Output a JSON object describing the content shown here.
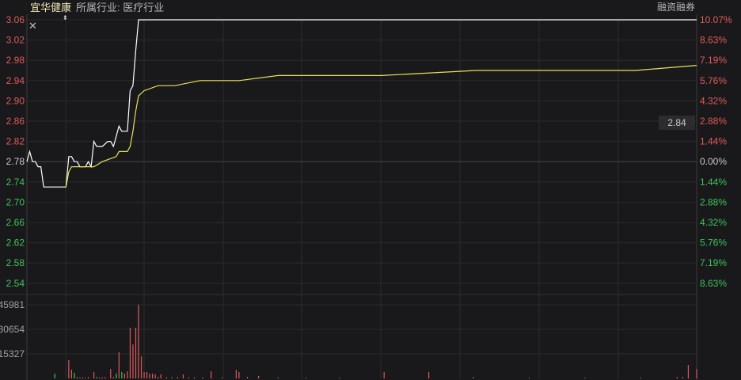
{
  "header": {
    "stock_name": "宜华健康",
    "industry": "所属行业: 医疗行业",
    "margin_trading": "融资融券",
    "current_price_label": "2.84"
  },
  "icons": {
    "close": "close-icon",
    "marker": "drag-handle-icon"
  },
  "colors": {
    "background": "#19191b",
    "grid": "#2b2b2d",
    "up": "#e05a5a",
    "down": "#3cc35a",
    "neutral": "#c8c8c8",
    "price_line": "#ffffff",
    "avg_line": "#e8e05a"
  },
  "chart_data": {
    "type": "line",
    "x_unit": "minute",
    "xlim": [
      0,
      240
    ],
    "prev_close": 2.78,
    "ylim": [
      2.52,
      3.06
    ],
    "y_ticks": [
      "3.06",
      "3.02",
      "2.98",
      "2.94",
      "2.90",
      "2.86",
      "2.82",
      "2.78",
      "2.74",
      "2.70",
      "2.66",
      "2.62",
      "2.58",
      "2.54"
    ],
    "pct_ticks": [
      "10.07%",
      "8.63%",
      "7.19%",
      "5.76%",
      "4.32%",
      "2.88%",
      "1.44%",
      "0.00%",
      "1.44%",
      "2.88%",
      "4.32%",
      "5.76%",
      "7.19%",
      "8.63%"
    ],
    "grid": true,
    "series": [
      {
        "key": "price",
        "x": [
          0,
          1,
          2,
          3,
          4,
          5,
          6,
          14,
          15,
          16,
          17,
          18,
          19,
          21,
          22,
          23,
          24,
          25,
          27,
          29,
          30,
          31,
          33,
          34,
          36,
          37,
          38,
          39,
          40,
          240
        ],
        "y": [
          2.78,
          2.8,
          2.78,
          2.78,
          2.77,
          2.77,
          2.73,
          2.73,
          2.79,
          2.79,
          2.78,
          2.78,
          2.77,
          2.77,
          2.78,
          2.77,
          2.82,
          2.81,
          2.81,
          2.82,
          2.82,
          2.81,
          2.85,
          2.84,
          2.84,
          2.92,
          2.93,
          3.0,
          3.06,
          3.06
        ]
      },
      {
        "key": "average",
        "x": [
          14,
          15,
          16,
          19,
          24,
          27,
          32,
          33,
          36,
          37,
          38,
          39,
          40,
          42,
          47,
          53,
          62,
          76,
          90,
          127,
          161,
          218,
          240
        ],
        "y": [
          2.73,
          2.76,
          2.77,
          2.77,
          2.77,
          2.78,
          2.79,
          2.8,
          2.8,
          2.81,
          2.84,
          2.88,
          2.91,
          2.92,
          2.93,
          2.93,
          2.94,
          2.94,
          2.95,
          2.95,
          2.96,
          2.96,
          2.97
        ]
      }
    ],
    "volume": {
      "ticks": [
        "45981",
        "30654",
        "15327"
      ],
      "ylim": [
        0,
        45981
      ],
      "bars": [
        {
          "x": 10,
          "v": 3000,
          "dir": "down"
        },
        {
          "x": 15,
          "v": 11400,
          "dir": "up"
        },
        {
          "x": 16,
          "v": 5400,
          "dir": "up"
        },
        {
          "x": 17,
          "v": 3500,
          "dir": "down"
        },
        {
          "x": 18,
          "v": 800,
          "dir": "up"
        },
        {
          "x": 19,
          "v": 600,
          "dir": "up"
        },
        {
          "x": 20,
          "v": 700,
          "dir": "up"
        },
        {
          "x": 21,
          "v": 500,
          "dir": "up"
        },
        {
          "x": 22,
          "v": 900,
          "dir": "up"
        },
        {
          "x": 24,
          "v": 4000,
          "dir": "up"
        },
        {
          "x": 25,
          "v": 900,
          "dir": "down"
        },
        {
          "x": 26,
          "v": 600,
          "dir": "up"
        },
        {
          "x": 27,
          "v": 700,
          "dir": "up"
        },
        {
          "x": 28,
          "v": 800,
          "dir": "up"
        },
        {
          "x": 30,
          "v": 5900,
          "dir": "up"
        },
        {
          "x": 31,
          "v": 900,
          "dir": "up"
        },
        {
          "x": 32,
          "v": 3000,
          "dir": "down"
        },
        {
          "x": 33,
          "v": 16300,
          "dir": "up"
        },
        {
          "x": 34,
          "v": 4000,
          "dir": "down"
        },
        {
          "x": 35,
          "v": 3000,
          "dir": "up"
        },
        {
          "x": 36,
          "v": 4400,
          "dir": "up"
        },
        {
          "x": 37,
          "v": 31600,
          "dir": "up"
        },
        {
          "x": 38,
          "v": 21200,
          "dir": "up"
        },
        {
          "x": 39,
          "v": 31600,
          "dir": "up"
        },
        {
          "x": 40,
          "v": 45981,
          "dir": "up"
        },
        {
          "x": 41,
          "v": 13800,
          "dir": "up"
        },
        {
          "x": 42,
          "v": 4000,
          "dir": "up"
        },
        {
          "x": 43,
          "v": 4000,
          "dir": "up"
        },
        {
          "x": 44,
          "v": 3000,
          "dir": "up"
        },
        {
          "x": 45,
          "v": 3000,
          "dir": "up"
        },
        {
          "x": 46,
          "v": 2500,
          "dir": "up"
        },
        {
          "x": 47,
          "v": 1000,
          "dir": "up"
        },
        {
          "x": 48,
          "v": 2500,
          "dir": "up"
        },
        {
          "x": 50,
          "v": 800,
          "dir": "up"
        },
        {
          "x": 52,
          "v": 700,
          "dir": "up"
        },
        {
          "x": 54,
          "v": 900,
          "dir": "up"
        },
        {
          "x": 56,
          "v": 2500,
          "dir": "up"
        },
        {
          "x": 58,
          "v": 700,
          "dir": "up"
        },
        {
          "x": 60,
          "v": 600,
          "dir": "up"
        },
        {
          "x": 63,
          "v": 700,
          "dir": "up"
        },
        {
          "x": 66,
          "v": 4400,
          "dir": "up"
        },
        {
          "x": 70,
          "v": 600,
          "dir": "up"
        },
        {
          "x": 75,
          "v": 5400,
          "dir": "up"
        },
        {
          "x": 76,
          "v": 4000,
          "dir": "up"
        },
        {
          "x": 79,
          "v": 1000,
          "dir": "up"
        },
        {
          "x": 83,
          "v": 1500,
          "dir": "up"
        },
        {
          "x": 90,
          "v": 600,
          "dir": "up"
        },
        {
          "x": 100,
          "v": 500,
          "dir": "up"
        },
        {
          "x": 112,
          "v": 500,
          "dir": "up"
        },
        {
          "x": 128,
          "v": 4000,
          "dir": "up"
        },
        {
          "x": 144,
          "v": 4000,
          "dir": "up"
        },
        {
          "x": 160,
          "v": 800,
          "dir": "up"
        },
        {
          "x": 180,
          "v": 500,
          "dir": "up"
        },
        {
          "x": 200,
          "v": 500,
          "dir": "up"
        },
        {
          "x": 220,
          "v": 500,
          "dir": "up"
        },
        {
          "x": 233,
          "v": 900,
          "dir": "up"
        },
        {
          "x": 235,
          "v": 900,
          "dir": "up"
        },
        {
          "x": 237,
          "v": 8400,
          "dir": "up"
        },
        {
          "x": 240,
          "v": 5900,
          "dir": "up"
        }
      ]
    }
  }
}
